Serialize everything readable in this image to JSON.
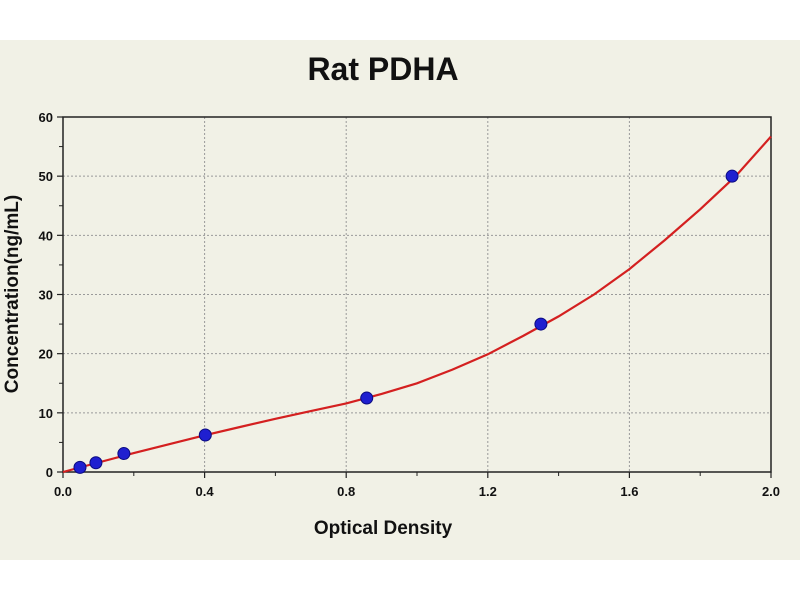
{
  "chart_data": {
    "type": "scatter",
    "title": "Rat PDHA",
    "xlabel": "Optical Density",
    "ylabel": "Concentration(ng/mL)",
    "xlim": [
      0,
      2.0
    ],
    "ylim": [
      0,
      60
    ],
    "x_ticks": [
      "0.0",
      "0.4",
      "0.8",
      "1.2",
      "1.6",
      "2.0"
    ],
    "y_ticks": [
      "0",
      "10",
      "20",
      "30",
      "40",
      "50",
      "60"
    ],
    "grid": true,
    "legend": "none",
    "series": [
      {
        "points": [
          {
            "x": 0.048,
            "y": 0.78
          },
          {
            "x": 0.093,
            "y": 1.56
          },
          {
            "x": 0.172,
            "y": 3.12
          },
          {
            "x": 0.402,
            "y": 6.25
          },
          {
            "x": 0.858,
            "y": 12.5
          },
          {
            "x": 1.35,
            "y": 25.0
          },
          {
            "x": 1.89,
            "y": 50.0
          }
        ],
        "color": "#1f1fd0"
      }
    ],
    "fit_curve": {
      "color": "#d42020",
      "x": [
        0.0,
        0.1,
        0.2,
        0.3,
        0.4,
        0.5,
        0.6,
        0.7,
        0.8,
        0.9,
        1.0,
        1.1,
        1.2,
        1.3,
        1.4,
        1.5,
        1.6,
        1.7,
        1.8,
        1.9,
        2.0
      ],
      "y": [
        0.0,
        1.6,
        3.2,
        4.7,
        6.2,
        7.6,
        9.0,
        10.3,
        11.6,
        13.2,
        15.0,
        17.3,
        19.9,
        23.0,
        26.3,
        30.0,
        34.3,
        39.2,
        44.4,
        50.0,
        56.7
      ]
    }
  }
}
